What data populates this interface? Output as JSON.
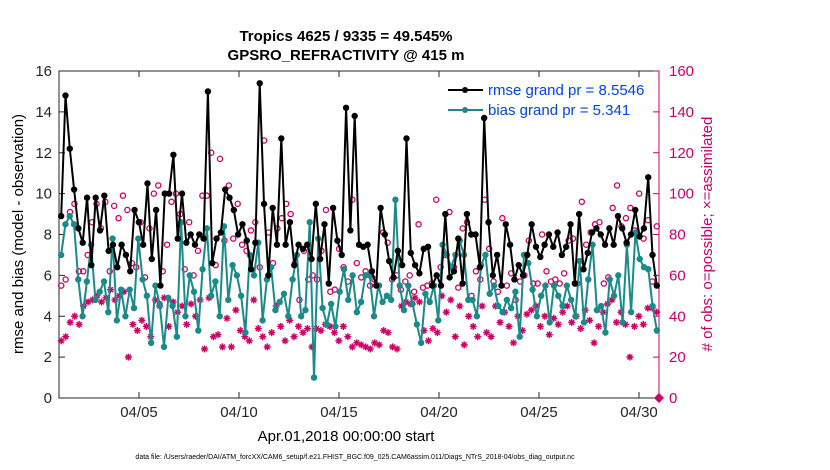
{
  "chart_data": {
    "type": "line",
    "title": "Tropics 4625 / 9335 = 49.545%",
    "subtitle": "GPSRO_REFRACTIVITY @ 415 m",
    "xlabel": "Apr.01,2018 00:00:00 start",
    "ylabel": "rmse and bias (model - observation)",
    "y2label": "# of obs: o=possible; ×=assimilated",
    "footnote": "data file: /Users/raeder/DAI/ATM_forcXX/CAM6_setup/f.e21.FHIST_BGC.f09_025.CAM6assim.011/Diags_NTrS_2018-04/obs_diag_output.nc",
    "xlim": [
      0,
      30
    ],
    "ylim": [
      0,
      16
    ],
    "y2lim": [
      0,
      160
    ],
    "yticks": [
      "0",
      "2",
      "4",
      "6",
      "8",
      "10",
      "12",
      "14",
      "16"
    ],
    "y2ticks": [
      "0",
      "20",
      "40",
      "60",
      "80",
      "100",
      "120",
      "140",
      "160"
    ],
    "xticks": [
      {
        "x": 4,
        "label": "04/05"
      },
      {
        "x": 9,
        "label": "04/10"
      },
      {
        "x": 14,
        "label": "04/15"
      },
      {
        "x": 19,
        "label": "04/20"
      },
      {
        "x": 24,
        "label": "04/25"
      },
      {
        "x": 29,
        "label": "04/30"
      }
    ],
    "legend_position": "top-right",
    "series": [
      {
        "name": "rmse grand pr = 8.5546",
        "color": "#000000",
        "values": [
          8.9,
          14.8,
          12.2,
          10.2,
          8.3,
          7.6,
          9.8,
          6.5,
          9.8,
          8.2,
          9.9,
          7.2,
          7.5,
          6.4,
          7.5,
          7.0,
          6.2,
          9.2,
          8.6,
          7.5,
          10.5,
          6.8,
          9.2,
          5.5,
          10.0,
          10.0,
          11.9,
          7.8,
          10.0,
          7.6,
          8.0,
          7.5,
          8.0,
          7.8,
          15.0,
          6.6,
          7.8,
          8.1,
          10.2,
          9.8,
          9.2,
          8.0,
          8.5,
          7.7,
          6.3,
          7.6,
          15.4,
          9.5,
          6.0,
          9.3,
          7.5,
          12.7,
          7.5,
          8.6,
          6.5,
          7.5,
          7.3,
          7.5,
          6.8,
          9.5,
          6.8,
          8.5,
          5.6,
          9.3,
          7.7,
          7.0,
          14.2,
          8.2,
          13.8,
          7.5,
          7.4,
          7.5,
          6.2,
          5.5,
          9.3,
          8.0,
          6.7,
          5.9,
          7.2,
          6.5,
          12.7,
          7.1,
          6.5,
          6.1,
          7.3,
          7.4,
          5.5,
          6.0,
          5.5,
          9.0,
          5.9,
          6.2,
          7.8,
          5.6,
          9.0,
          8.0,
          8.0,
          6.4,
          13.7,
          8.6,
          6.0,
          7.0,
          5.5,
          8.5,
          7.5,
          5.8,
          6.5,
          6.0,
          7.0,
          8.5,
          7.4,
          6.9,
          7.5,
          8.0,
          7.4,
          8.1,
          7.0,
          7.4,
          8.5,
          5.6,
          9.0,
          6.3,
          7.1,
          8.1,
          8.3,
          8.0,
          7.5,
          8.3,
          7.5,
          8.9,
          8.3,
          7.6,
          8.0,
          9.2,
          7.9,
          8.3,
          10.8,
          7.0,
          5.5
        ]
      },
      {
        "name": "bias grand pr = 5.341",
        "color": "#1a8a8a",
        "values": [
          7.0,
          8.5,
          8.9,
          8.5,
          5.8,
          4.0,
          5.7,
          7.5,
          4.8,
          5.2,
          5.7,
          4.2,
          7.8,
          3.8,
          5.3,
          4.0,
          5.3,
          4.4,
          7.8,
          5.8,
          5.0,
          2.7,
          5.5,
          4.6,
          2.5,
          4.9,
          4.5,
          3.0,
          8.6,
          4.0,
          6.0,
          5.2,
          3.3,
          6.3,
          8.3,
          5.0,
          5.7,
          4.0,
          8.4,
          4.8,
          6.5,
          6.0,
          5.0,
          3.2,
          7.0,
          6.0,
          7.6,
          3.8,
          5.8,
          6.4,
          4.3,
          4.7,
          5.1,
          4.0,
          5.8,
          7.0,
          4.0,
          4.3,
          8.6,
          1.0,
          7.8,
          4.4,
          3.6,
          4.6,
          3.5,
          5.2,
          6.3,
          4.8,
          6.0,
          4.2,
          4.7,
          6.0,
          6.0,
          4.0,
          5.5,
          4.7,
          5.0,
          4.8,
          9.7,
          5.5,
          4.3,
          5.5,
          4.6,
          3.6,
          2.7,
          5.1,
          4.7,
          5.5,
          3.8,
          7.5,
          7.0,
          6.4,
          7.0,
          7.7,
          7.0,
          4.8,
          4.8,
          4.0,
          6.5,
          7.0,
          5.1,
          5.5,
          4.5,
          4.2,
          4.8,
          4.4,
          5.2,
          3.0,
          7.0,
          6.6,
          5.3,
          4.0,
          5.0,
          5.5,
          3.7,
          5.5,
          5.0,
          4.5,
          5.5,
          4.8,
          4.0,
          6.7,
          3.7,
          5.8,
          7.5,
          4.3,
          4.5,
          3.2,
          5.8,
          5.0,
          6.0,
          3.7,
          7.5,
          4.2,
          8.1,
          6.8,
          6.4,
          6.3,
          4.5,
          3.3
        ]
      },
      {
        "name": "possible obs (o)",
        "color": "#cc0066",
        "axis": "right",
        "values": [
          55,
          58,
          91,
          95,
          62,
          62,
          70,
          86,
          95,
          83,
          96,
          62,
          94,
          88,
          99,
          92,
          66,
          64,
          86,
          59,
          83,
          100,
          104,
          62,
          75,
          96,
          100,
          90,
          63,
          86,
          60,
          72,
          99,
          99,
          120,
          65,
          117,
          77,
          104,
          78,
          95,
          75,
          72,
          82,
          86,
          64,
          126,
          81,
          66,
          83,
          88,
          95,
          90,
          66,
          48,
          72,
          58,
          60,
          58,
          72,
          92,
          52,
          53,
          73,
          64,
          57,
          97,
          66,
          59,
          62,
          55,
          58,
          55,
          81,
          76,
          58,
          60,
          53,
          57,
          60,
          52,
          85,
          54,
          55,
          56,
          97,
          64,
          70,
          91,
          64,
          54,
          83,
          86,
          50,
          62,
          58,
          97,
          73,
          57,
          52,
          88,
          55,
          61,
          48,
          57,
          60,
          77,
          56,
          56,
          80,
          62,
          57,
          58,
          56,
          61,
          77,
          78,
          56,
          96,
          75,
          81,
          85,
          86,
          56,
          59,
          93,
          104,
          84,
          88,
          93,
          82,
          100,
          78,
          87,
          57,
          84
        ]
      },
      {
        "name": "assimilated obs (×)",
        "color": "#cc0066",
        "axis": "right",
        "values": [
          28,
          30,
          37,
          40,
          36,
          45,
          47,
          48,
          50,
          47,
          49,
          53,
          48,
          50,
          52,
          20,
          36,
          33,
          38,
          35,
          30,
          48,
          45,
          49,
          35,
          47,
          42,
          45,
          36,
          46,
          40,
          48,
          24,
          49,
          30,
          31,
          25,
          39,
          25,
          43,
          33,
          30,
          28,
          48,
          34,
          30,
          25,
          32,
          45,
          35,
          28,
          38,
          30,
          35,
          32,
          34,
          25,
          34,
          33,
          36,
          35,
          32,
          28,
          35,
          30,
          25,
          27,
          26,
          25,
          24,
          27,
          26,
          33,
          32,
          25,
          24,
          45,
          47,
          46,
          49,
          47,
          33,
          28,
          34,
          32,
          50,
          42,
          48,
          30,
          45,
          26,
          40,
          35,
          30,
          45,
          32,
          30,
          45,
          37,
          42,
          35,
          27,
          40,
          33,
          41,
          43,
          45,
          35,
          40,
          31,
          39,
          36,
          42,
          45,
          37,
          40,
          34,
          43,
          38,
          27,
          35,
          42,
          46,
          48,
          37,
          42,
          36,
          20,
          35,
          40,
          36,
          44,
          44,
          42
        ]
      }
    ]
  }
}
